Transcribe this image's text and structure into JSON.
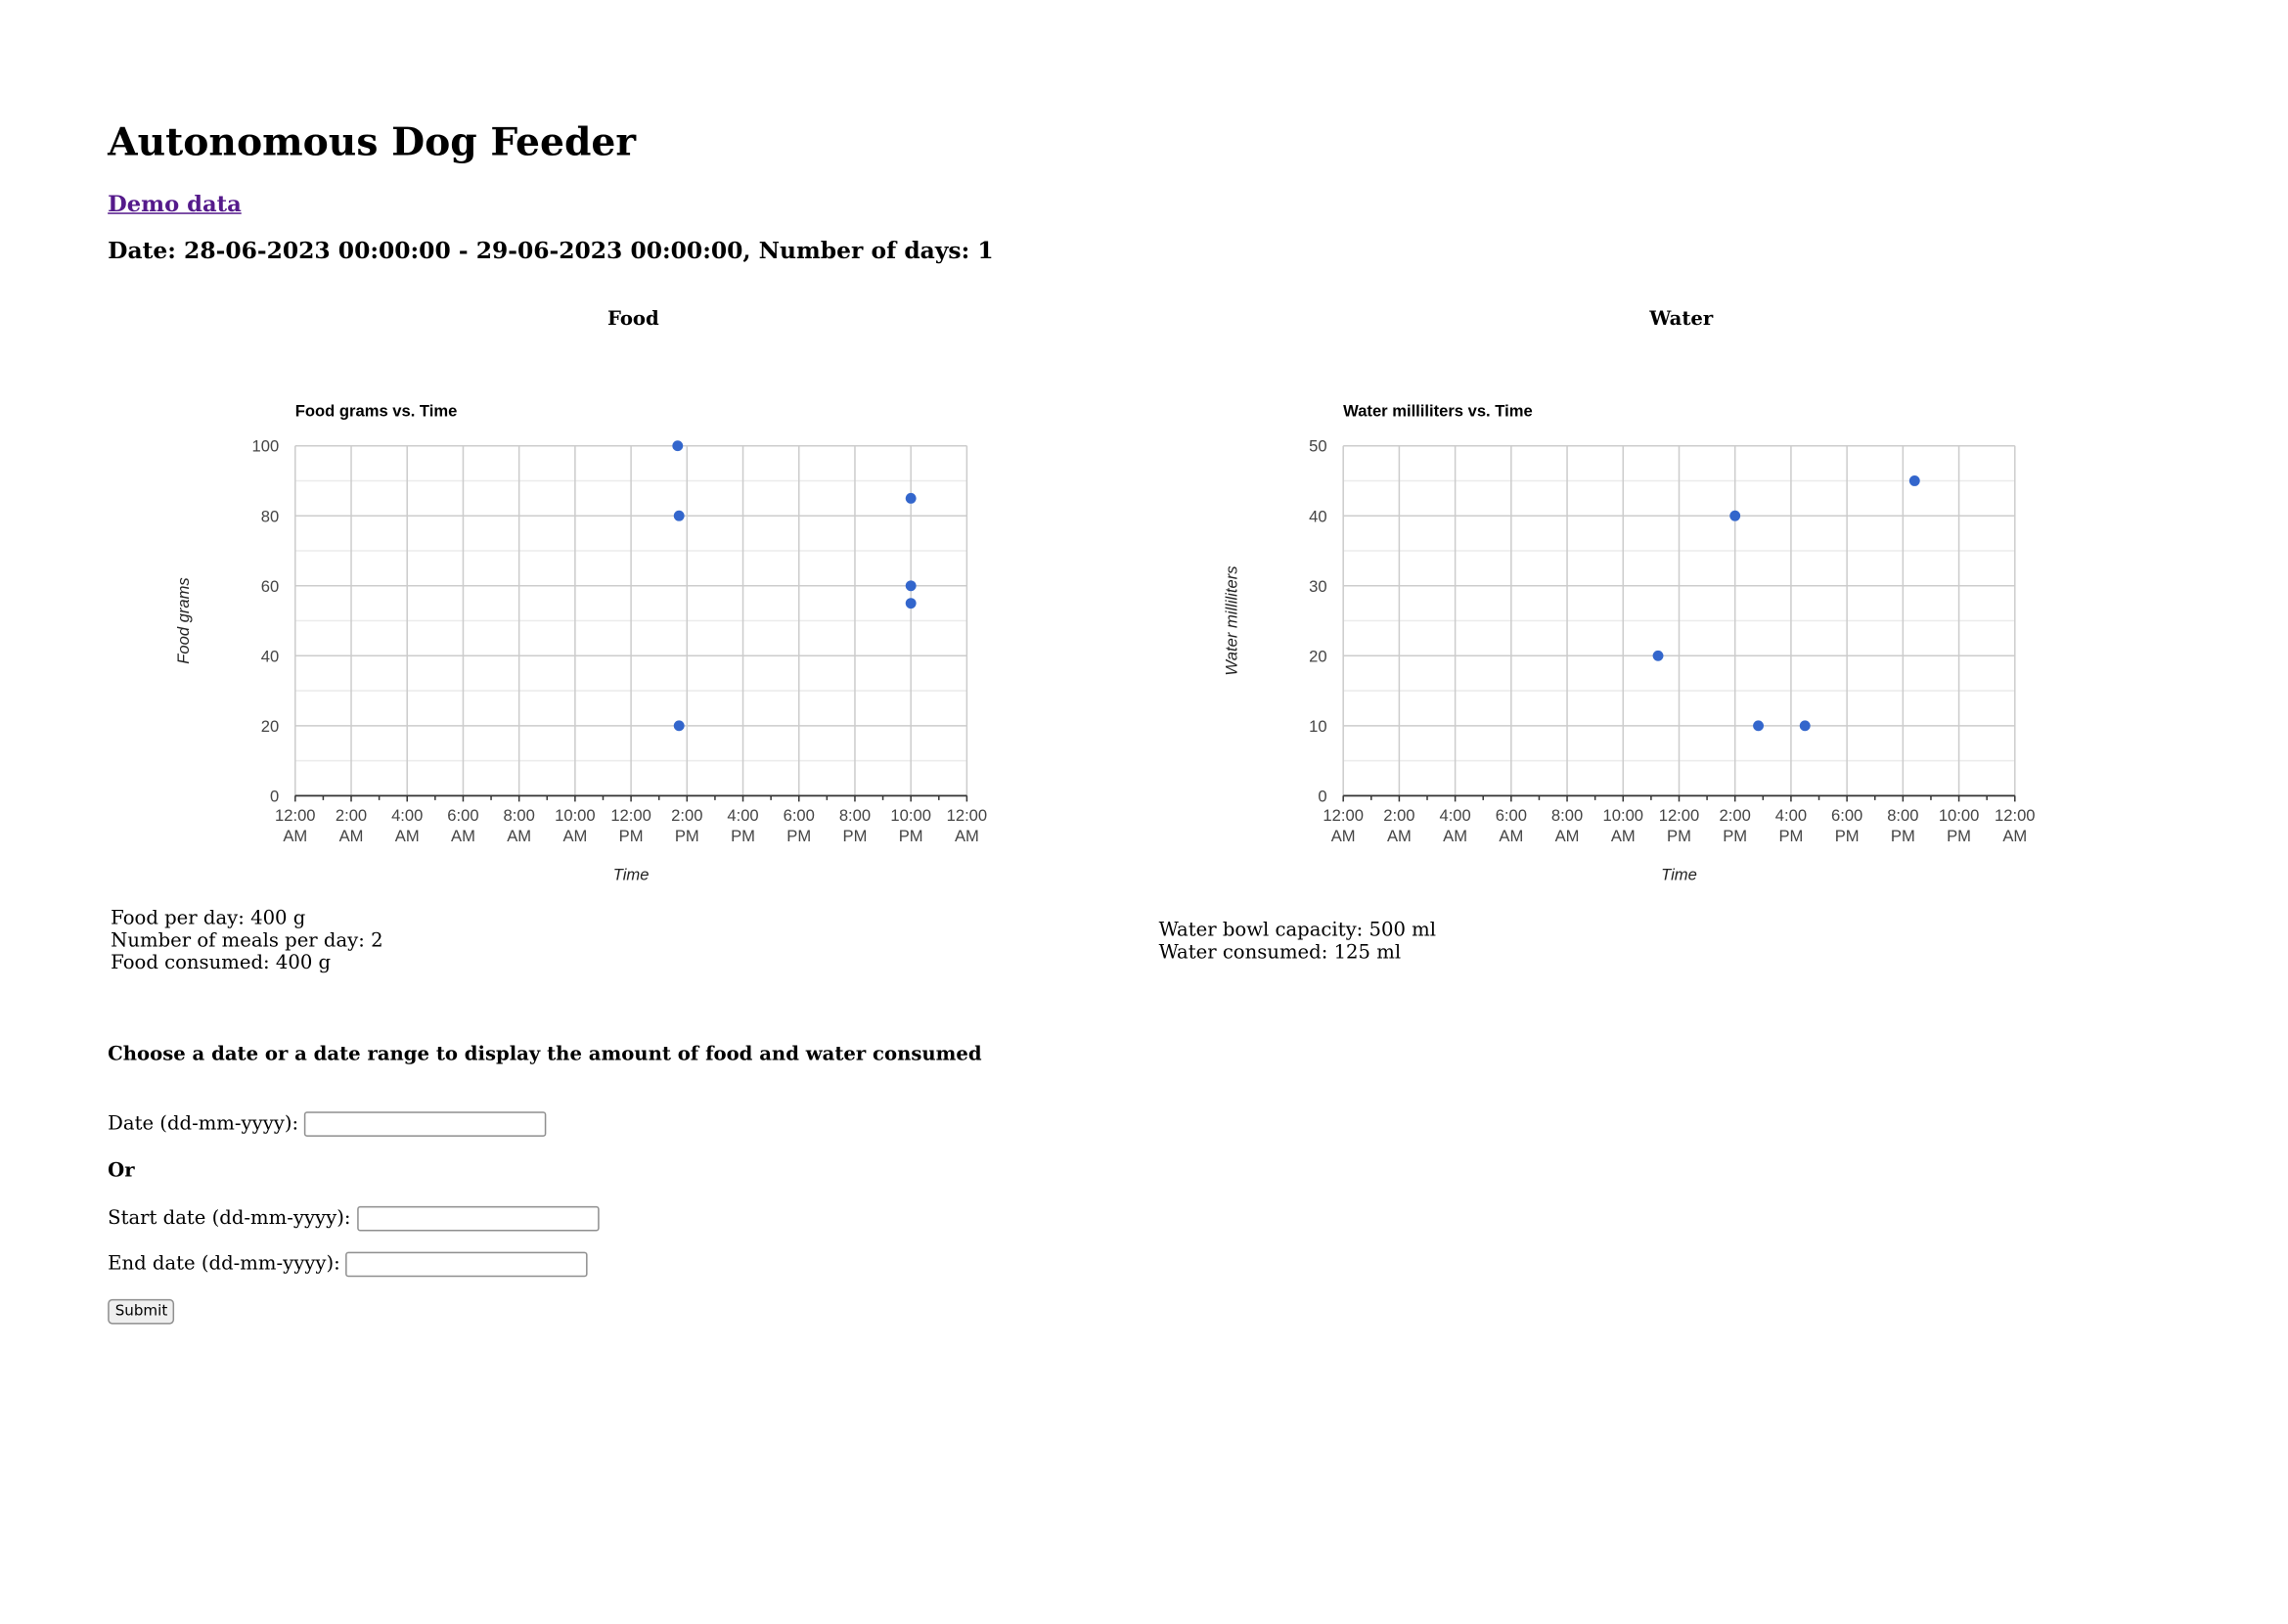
{
  "page": {
    "title": "Autonomous Dog Feeder",
    "demo_link": "Demo data",
    "date_line": "Date: 28-06-2023 00:00:00 - 29-06-2023 00:00:00, Number of days: 1"
  },
  "food": {
    "section_title": "Food",
    "stats": [
      "Food per day: 400 g",
      "Number of meals per day: 2",
      "Food consumed: 400 g"
    ]
  },
  "water": {
    "section_title": "Water",
    "stats": [
      "Water bowl capacity: 500 ml",
      "Water consumed: 125 ml"
    ]
  },
  "form": {
    "heading": "Choose a date or a date range to display the amount of food and water consumed",
    "date_label": "Date (dd-mm-yyyy):",
    "or_label": "Or",
    "start_label": "Start date (dd-mm-yyyy):",
    "end_label": "End date (dd-mm-yyyy):",
    "submit_label": "Submit"
  },
  "colors": {
    "point": "#3366cc",
    "grid": "#cccccc",
    "minor_grid": "#ebebeb",
    "axis": "#333333",
    "tick_text": "#444444",
    "link": "#551a8b"
  },
  "chart_data": [
    {
      "type": "scatter",
      "title": "Food grams vs. Time",
      "xlabel": "Time",
      "ylabel": "Food grams",
      "xlim": [
        "00:00",
        "24:00"
      ],
      "ylim": [
        0,
        100
      ],
      "yticks": [
        0,
        20,
        40,
        60,
        80,
        100
      ],
      "xticks": [
        [
          "12:00",
          "AM"
        ],
        [
          "2:00",
          "AM"
        ],
        [
          "4:00",
          "AM"
        ],
        [
          "6:00",
          "AM"
        ],
        [
          "8:00",
          "AM"
        ],
        [
          "10:00",
          "AM"
        ],
        [
          "12:00",
          "PM"
        ],
        [
          "2:00",
          "PM"
        ],
        [
          "4:00",
          "PM"
        ],
        [
          "6:00",
          "PM"
        ],
        [
          "8:00",
          "PM"
        ],
        [
          "10:00",
          "PM"
        ],
        [
          "12:00",
          "AM"
        ]
      ],
      "grid": true,
      "points": [
        {
          "x": "13:40",
          "y": 100
        },
        {
          "x": "13:43",
          "y": 80
        },
        {
          "x": "13:43",
          "y": 20
        },
        {
          "x": "22:00",
          "y": 85
        },
        {
          "x": "22:00",
          "y": 60
        },
        {
          "x": "22:00",
          "y": 55
        }
      ]
    },
    {
      "type": "scatter",
      "title": "Water milliliters vs. Time",
      "xlabel": "Time",
      "ylabel": "Water milliliters",
      "xlim": [
        "00:00",
        "24:00"
      ],
      "ylim": [
        0,
        50
      ],
      "yticks": [
        0,
        10,
        20,
        30,
        40,
        50
      ],
      "xticks": [
        [
          "12:00",
          "AM"
        ],
        [
          "2:00",
          "AM"
        ],
        [
          "4:00",
          "AM"
        ],
        [
          "6:00",
          "AM"
        ],
        [
          "8:00",
          "AM"
        ],
        [
          "10:00",
          "AM"
        ],
        [
          "12:00",
          "PM"
        ],
        [
          "2:00",
          "PM"
        ],
        [
          "4:00",
          "PM"
        ],
        [
          "6:00",
          "PM"
        ],
        [
          "8:00",
          "PM"
        ],
        [
          "10:00",
          "PM"
        ],
        [
          "12:00",
          "AM"
        ]
      ],
      "grid": true,
      "points": [
        {
          "x": "11:15",
          "y": 20
        },
        {
          "x": "14:00",
          "y": 40
        },
        {
          "x": "14:50",
          "y": 10
        },
        {
          "x": "16:30",
          "y": 10
        },
        {
          "x": "20:25",
          "y": 45
        }
      ]
    }
  ]
}
